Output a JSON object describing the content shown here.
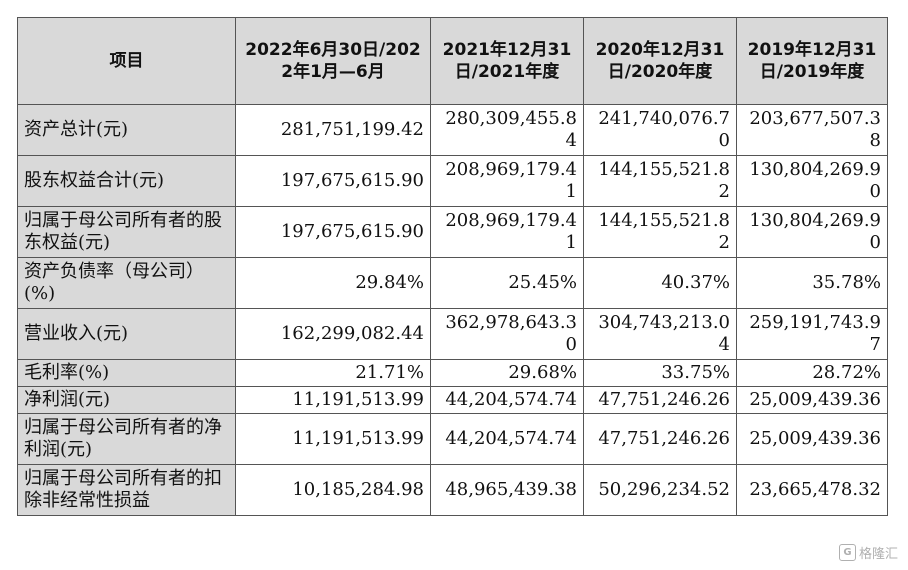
{
  "table": {
    "headers": [
      "项目",
      "2022年6月30日/2022年1月—6月",
      "2021年12月31日/2021年度",
      "2020年12月31日/2020年度",
      "2019年12月31日/2019年度"
    ],
    "rows": [
      {
        "label": "资产总计(元)",
        "values": [
          "281,751,199.42",
          "280,309,455.84",
          "241,740,076.70",
          "203,677,507.38"
        ]
      },
      {
        "label": "股东权益合计(元)",
        "values": [
          "197,675,615.90",
          "208,969,179.41",
          "144,155,521.82",
          "130,804,269.90"
        ]
      },
      {
        "label": "归属于母公司所有者的股东权益(元)",
        "values": [
          "197,675,615.90",
          "208,969,179.41",
          "144,155,521.82",
          "130,804,269.90"
        ]
      },
      {
        "label": "资产负债率（母公司）(%)",
        "values": [
          "29.84%",
          "25.45%",
          "40.37%",
          "35.78%"
        ]
      },
      {
        "label": "营业收入(元)",
        "values": [
          "162,299,082.44",
          "362,978,643.30",
          "304,743,213.04",
          "259,191,743.97"
        ]
      },
      {
        "label": "毛利率(%)",
        "values": [
          "21.71%",
          "29.68%",
          "33.75%",
          "28.72%"
        ]
      },
      {
        "label": "净利润(元)",
        "values": [
          "11,191,513.99",
          "44,204,574.74",
          "47,751,246.26",
          "25,009,439.36"
        ]
      },
      {
        "label": "归属于母公司所有者的净利润(元)",
        "values": [
          "11,191,513.99",
          "44,204,574.74",
          "47,751,246.26",
          "25,009,439.36"
        ]
      },
      {
        "label": "归属于母公司所有者的扣除非经常性损益",
        "values": [
          "10,185,284.98",
          "48,965,439.38",
          "50,296,234.52",
          "23,665,478.32"
        ]
      }
    ]
  },
  "watermark": {
    "logo_text": "G",
    "text": "格隆汇"
  }
}
